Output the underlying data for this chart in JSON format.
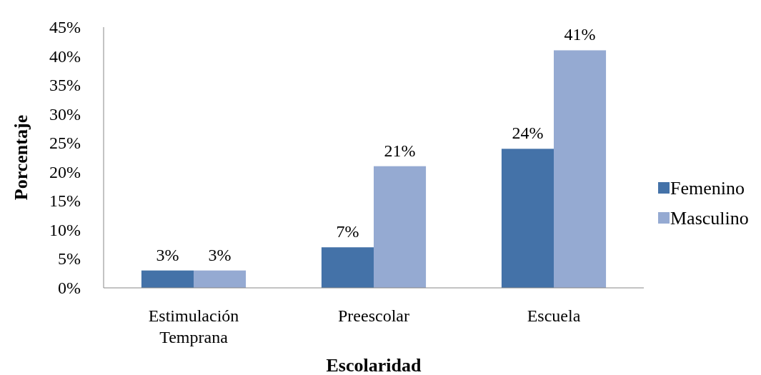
{
  "chart_data": {
    "type": "bar",
    "xlabel": "Escolaridad",
    "ylabel": "Porcentaje",
    "categories": [
      "Estimulación\nTemprana",
      "Preescolar",
      "Escuela"
    ],
    "series": [
      {
        "name": "Femenino",
        "color": "#4472a8",
        "values": [
          3,
          7,
          24
        ],
        "value_labels": [
          "3%",
          "7%",
          "24%"
        ]
      },
      {
        "name": "Masculino",
        "color": "#95aad2",
        "values": [
          3,
          21,
          41
        ],
        "value_labels": [
          "3%",
          "21%",
          "41%"
        ]
      }
    ],
    "ylim": [
      0,
      45
    ],
    "yticks": [
      {
        "value": 0,
        "label": "0%"
      },
      {
        "value": 5,
        "label": "5%"
      },
      {
        "value": 10,
        "label": "10%"
      },
      {
        "value": 15,
        "label": "15%"
      },
      {
        "value": 20,
        "label": "20%"
      },
      {
        "value": 25,
        "label": "25%"
      },
      {
        "value": 30,
        "label": "30%"
      },
      {
        "value": 35,
        "label": "35%"
      },
      {
        "value": 40,
        "label": "40%"
      },
      {
        "value": 45,
        "label": "45%"
      }
    ],
    "grid": false,
    "legend": "right"
  }
}
